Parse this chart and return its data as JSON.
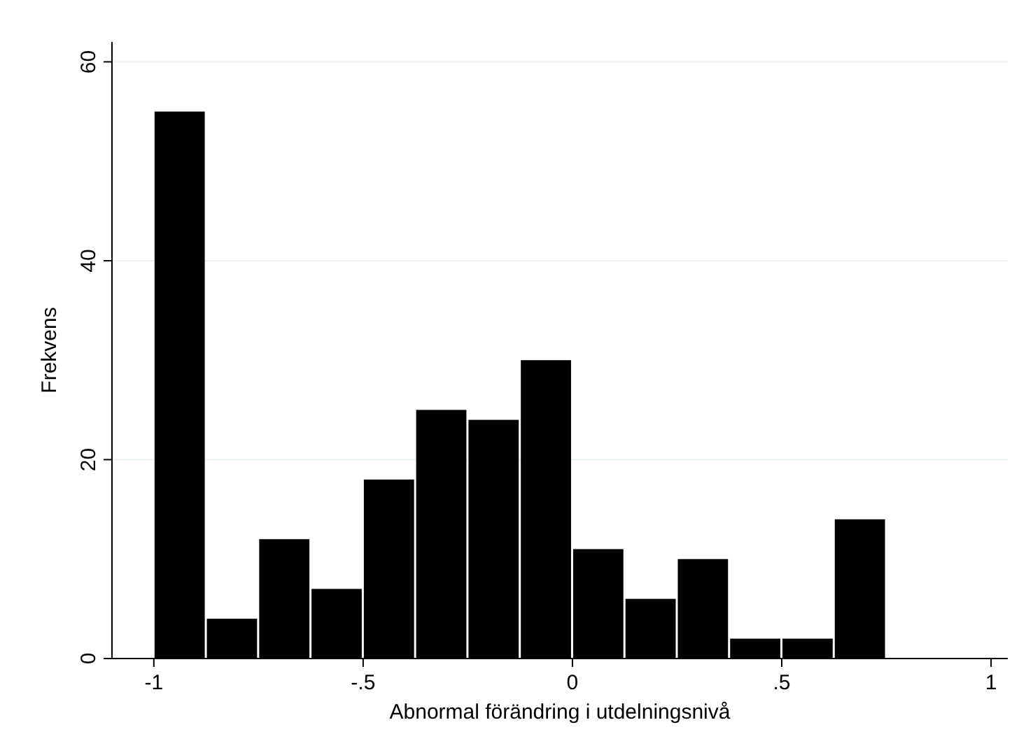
{
  "chart_data": {
    "type": "histogram",
    "xlabel": "Abnormal förändring i utdelningsnivå",
    "ylabel": "Frekvens",
    "bins": [
      -1,
      -0.875,
      -0.75,
      -0.625,
      -0.5,
      -0.375,
      -0.25,
      -0.125,
      0,
      0.125,
      0.25,
      0.375,
      0.5,
      0.625,
      0.75
    ],
    "values": [
      55,
      4,
      12,
      7,
      18,
      25,
      24,
      30,
      11,
      6,
      10,
      2,
      2,
      14
    ],
    "color": "#000000",
    "xlim": [
      -1.1,
      1.04
    ],
    "xticks": [
      {
        "value": -1,
        "label": "-1"
      },
      {
        "value": -0.5,
        "label": "-.5"
      },
      0,
      {
        "value": 0.5,
        "label": ".5"
      },
      1
    ],
    "ylim": [
      0,
      62
    ],
    "yticks": [
      0,
      20,
      40,
      60
    ],
    "grid": "y"
  }
}
